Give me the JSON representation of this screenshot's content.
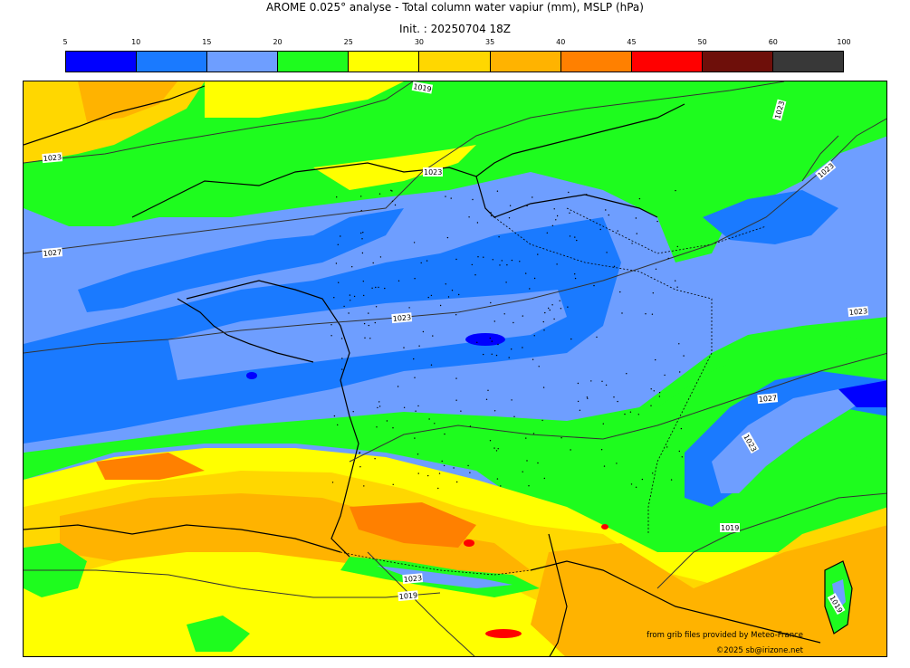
{
  "header": {
    "title": "AROME 0.025° analyse - Total column water vapiur (mm), MSLP (hPa)",
    "init": "Init. : 20250704 18Z"
  },
  "colorbar": {
    "ticks": [
      "5",
      "10",
      "15",
      "20",
      "25",
      "30",
      "35",
      "40",
      "45",
      "50",
      "60",
      "100"
    ],
    "colors": [
      "#0000ff",
      "#1a7aff",
      "#6e9eff",
      "#1efc1e",
      "#ffff00",
      "#ffd700",
      "#ffb300",
      "#ff8000",
      "#ff0000",
      "#6e0f0a",
      "#383838"
    ]
  },
  "isobars": {
    "labels": [
      {
        "text": "1019"
      },
      {
        "text": "1023"
      },
      {
        "text": "1023"
      },
      {
        "text": "1027"
      },
      {
        "text": "1023"
      },
      {
        "text": "1023"
      },
      {
        "text": "1023"
      },
      {
        "text": "1023"
      },
      {
        "text": "1027"
      },
      {
        "text": "1023"
      },
      {
        "text": "1019"
      },
      {
        "text": "1023"
      },
      {
        "text": "1019"
      },
      {
        "text": "1019"
      }
    ]
  },
  "credits": {
    "source": "from grib files provided by Meteo-France",
    "copyright": "©2025 sb@irizone.net"
  }
}
